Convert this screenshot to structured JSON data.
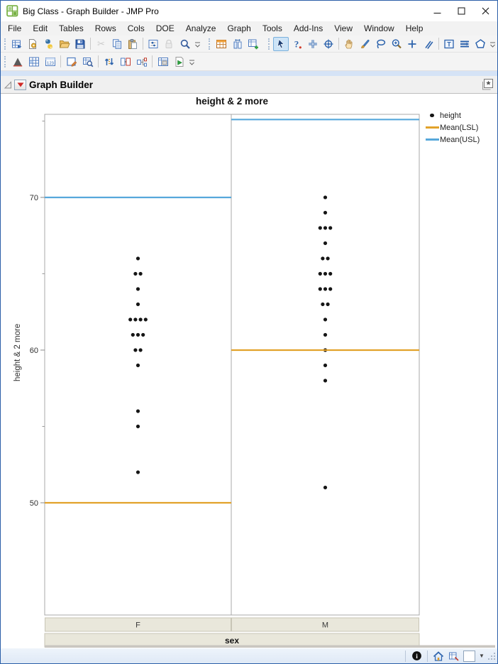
{
  "window": {
    "title": "Big Class - Graph Builder - JMP Pro",
    "controls": [
      "minimize",
      "maximize",
      "close"
    ]
  },
  "menubar": {
    "items": [
      "File",
      "Edit",
      "Tables",
      "Rows",
      "Cols",
      "DOE",
      "Analyze",
      "Graph",
      "Tools",
      "Add-Ins",
      "View",
      "Window",
      "Help"
    ]
  },
  "toolbars": {
    "row1": [
      "new-data-table",
      "new-script",
      "python",
      "open",
      "save",
      "cut",
      "copy",
      "paste",
      "preferences",
      "lock",
      "search",
      "data-table",
      "compare-columns",
      "new-data-view",
      "arrow-tool",
      "help-tool",
      "crosshair-tool",
      "bullseye-tool",
      "grabber-tool",
      "brush-tool",
      "lasso-tool",
      "magnifier-tool",
      "plus-tool",
      "eraser-tool",
      "annotate-tool",
      "lines-tool",
      "polygon-tool"
    ],
    "row2": [
      "distribution",
      "grid-view",
      "numeric-view",
      "annotate-select",
      "table-search",
      "sort",
      "join-tables",
      "split-tables",
      "tabulate",
      "run-script"
    ]
  },
  "report": {
    "title": "Graph Builder"
  },
  "chart_data": {
    "type": "scatter",
    "title": "height & 2 more",
    "ylabel": "height & 2 more",
    "xlabel": "sex",
    "panels": [
      "F",
      "M"
    ],
    "yaxis": {
      "major_ticks": [
        50,
        60,
        70
      ],
      "minor_ticks": [
        55,
        65,
        75
      ],
      "ylim": [
        42.65,
        75.44
      ],
      "grid": false
    },
    "points_color": "#161616",
    "series": [
      {
        "name": "height",
        "type": "points",
        "values_by_panel": {
          "F": [
            66,
            65,
            65,
            64,
            63,
            62,
            62,
            62,
            62,
            61,
            61,
            61,
            60,
            60,
            59,
            56,
            55,
            52
          ],
          "M": [
            70,
            69,
            68,
            68,
            68,
            67,
            66,
            66,
            65,
            65,
            65,
            64,
            64,
            64,
            63,
            63,
            62,
            61,
            60,
            59,
            58,
            51
          ]
        }
      },
      {
        "name": "Mean(LSL)",
        "type": "refline",
        "color": "#E2A22A",
        "values_by_panel": {
          "F": 50,
          "M": 60
        }
      },
      {
        "name": "Mean(USL)",
        "type": "refline",
        "color": "#57A8DB",
        "values_by_panel": {
          "F": 70,
          "M": 75.1
        }
      }
    ],
    "legend": {
      "position": "right",
      "items": [
        {
          "label": "height",
          "swatch": "dot",
          "color": "#161616"
        },
        {
          "label": "Mean(LSL)",
          "swatch": "line",
          "color": "#E2A22A"
        },
        {
          "label": "Mean(USL)",
          "swatch": "line",
          "color": "#57A8DB"
        }
      ]
    }
  },
  "statusbar": {
    "icons": [
      "info",
      "home",
      "script-status",
      "color-box",
      "caret-down",
      "resize-grip"
    ]
  }
}
